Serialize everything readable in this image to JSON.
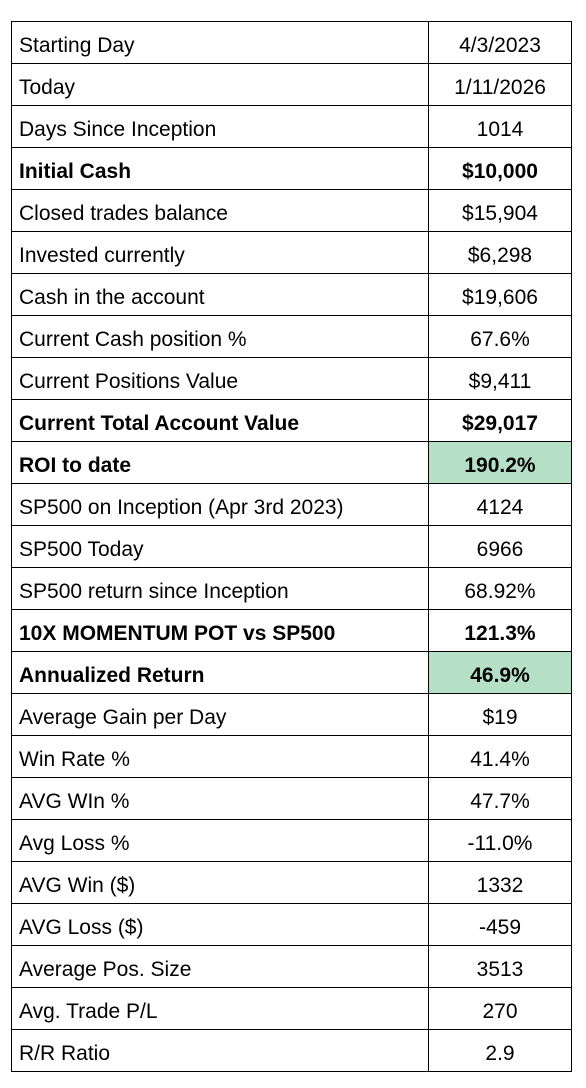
{
  "highlight_color": "#b5e0c6",
  "rows": [
    {
      "label": "Starting Day",
      "value": "4/3/2023",
      "bold": false,
      "highlight": false
    },
    {
      "label": "Today",
      "value": "1/11/2026",
      "bold": false,
      "highlight": false
    },
    {
      "label": "Days Since Inception",
      "value": "1014",
      "bold": false,
      "highlight": false
    },
    {
      "label": "Initial Cash",
      "value": "$10,000",
      "bold": true,
      "highlight": false
    },
    {
      "label": "Closed trades balance",
      "value": "$15,904",
      "bold": false,
      "highlight": false
    },
    {
      "label": "Invested currently",
      "value": "$6,298",
      "bold": false,
      "highlight": false
    },
    {
      "label": "Cash in the account",
      "value": "$19,606",
      "bold": false,
      "highlight": false
    },
    {
      "label": "Current Cash position %",
      "value": "67.6%",
      "bold": false,
      "highlight": false
    },
    {
      "label": "Current Positions Value",
      "value": "$9,411",
      "bold": false,
      "highlight": false
    },
    {
      "label": "Current Total Account Value",
      "value": "$29,017",
      "bold": true,
      "highlight": false
    },
    {
      "label": "ROI to date",
      "value": "190.2%",
      "bold": true,
      "highlight": true
    },
    {
      "label": "SP500 on Inception (Apr 3rd 2023)",
      "value": "4124",
      "bold": false,
      "highlight": false
    },
    {
      "label": "SP500 Today",
      "value": "6966",
      "bold": false,
      "highlight": false
    },
    {
      "label": "SP500 return since Inception",
      "value": "68.92%",
      "bold": false,
      "highlight": false
    },
    {
      "label": "10X MOMENTUM POT vs SP500",
      "value": "121.3%",
      "bold": true,
      "highlight": false
    },
    {
      "label": "Annualized Return",
      "value": "46.9%",
      "bold": true,
      "highlight": true
    },
    {
      "label": "Average Gain per Day",
      "value": "$19",
      "bold": false,
      "highlight": false
    },
    {
      "label": "Win Rate %",
      "value": "41.4%",
      "bold": false,
      "highlight": false
    },
    {
      "label": "AVG WIn %",
      "value": "47.7%",
      "bold": false,
      "highlight": false
    },
    {
      "label": "Avg Loss %",
      "value": "-11.0%",
      "bold": false,
      "highlight": false
    },
    {
      "label": "AVG Win ($)",
      "value": "1332",
      "bold": false,
      "highlight": false
    },
    {
      "label": "AVG Loss ($)",
      "value": "-459",
      "bold": false,
      "highlight": false
    },
    {
      "label": "Average Pos. Size",
      "value": "3513",
      "bold": false,
      "highlight": false
    },
    {
      "label": "Avg. Trade P/L",
      "value": "270",
      "bold": false,
      "highlight": false
    },
    {
      "label": "R/R Ratio",
      "value": "2.9",
      "bold": false,
      "highlight": false
    }
  ]
}
